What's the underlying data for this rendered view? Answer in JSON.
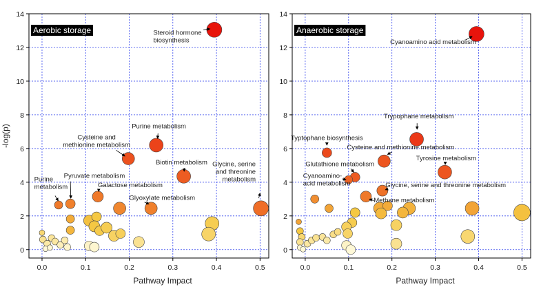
{
  "colors": {
    "grid": "#3344ee",
    "frame": "#000000",
    "bubble_stroke": "#444444",
    "title_bg": "#000000",
    "title_fg": "#ffffff",
    "scale_low": "#fffbe0",
    "scale_mid": "#f5c842",
    "scale_high": "#e8140c"
  },
  "chart_data": [
    {
      "type": "scatter",
      "title": "Aerobic storage",
      "xlabel": "Pathway Impact",
      "ylabel": "-log(p)",
      "xlim": [
        -0.03,
        0.52
      ],
      "ylim": [
        -0.5,
        14
      ],
      "xticks": [
        "0.0",
        "0.1",
        "0.2",
        "0.3",
        "0.4",
        "0.5"
      ],
      "xtick_values": [
        0,
        0.1,
        0.2,
        0.3,
        0.4,
        0.5
      ],
      "yticks": [
        "0",
        "2",
        "4",
        "6",
        "8",
        "10",
        "12",
        "14"
      ],
      "ytick_values": [
        0,
        2,
        4,
        6,
        8,
        10,
        12,
        14
      ],
      "grid": true,
      "points": [
        {
          "x": 0.395,
          "y": 13.05,
          "r": 11,
          "v": 1.0
        },
        {
          "x": 0.262,
          "y": 6.2,
          "r": 10,
          "v": 0.87
        },
        {
          "x": 0.198,
          "y": 5.4,
          "r": 9,
          "v": 0.83
        },
        {
          "x": 0.325,
          "y": 4.35,
          "r": 10,
          "v": 0.8
        },
        {
          "x": 0.502,
          "y": 2.45,
          "r": 11,
          "v": 0.75
        },
        {
          "x": 0.128,
          "y": 3.15,
          "r": 8,
          "v": 0.72
        },
        {
          "x": 0.25,
          "y": 2.45,
          "r": 9,
          "v": 0.7
        },
        {
          "x": 0.178,
          "y": 2.45,
          "r": 9,
          "v": 0.68
        },
        {
          "x": 0.065,
          "y": 2.72,
          "r": 7,
          "v": 0.7
        },
        {
          "x": 0.038,
          "y": 2.65,
          "r": 6,
          "v": 0.72
        },
        {
          "x": 0.065,
          "y": 1.82,
          "r": 6,
          "v": 0.58
        },
        {
          "x": 0.065,
          "y": 1.15,
          "r": 6,
          "v": 0.55
        },
        {
          "x": 0.108,
          "y": 1.72,
          "r": 8,
          "v": 0.52
        },
        {
          "x": 0.125,
          "y": 1.95,
          "r": 7,
          "v": 0.5
        },
        {
          "x": 0.12,
          "y": 1.38,
          "r": 8,
          "v": 0.5
        },
        {
          "x": 0.132,
          "y": 1.12,
          "r": 7,
          "v": 0.47
        },
        {
          "x": 0.148,
          "y": 1.3,
          "r": 8,
          "v": 0.45
        },
        {
          "x": 0.165,
          "y": 0.82,
          "r": 8,
          "v": 0.4
        },
        {
          "x": 0.18,
          "y": 0.95,
          "r": 7,
          "v": 0.42
        },
        {
          "x": 0.39,
          "y": 1.55,
          "r": 10,
          "v": 0.45
        },
        {
          "x": 0.382,
          "y": 0.92,
          "r": 10,
          "v": 0.38
        },
        {
          "x": 0.222,
          "y": 0.45,
          "r": 8,
          "v": 0.25
        },
        {
          "x": 0.0,
          "y": 1.0,
          "r": 4,
          "v": 0.35
        },
        {
          "x": 0.002,
          "y": 0.6,
          "r": 5,
          "v": 0.25
        },
        {
          "x": 0.012,
          "y": 0.35,
          "r": 5,
          "v": 0.18
        },
        {
          "x": 0.022,
          "y": 0.68,
          "r": 5,
          "v": 0.22
        },
        {
          "x": 0.03,
          "y": 0.48,
          "r": 5,
          "v": 0.2
        },
        {
          "x": 0.042,
          "y": 0.28,
          "r": 5,
          "v": 0.12
        },
        {
          "x": 0.052,
          "y": 0.55,
          "r": 5,
          "v": 0.16
        },
        {
          "x": 0.058,
          "y": 0.15,
          "r": 5,
          "v": 0.06
        },
        {
          "x": 0.008,
          "y": 0.05,
          "r": 4,
          "v": 0.03
        },
        {
          "x": 0.018,
          "y": 0.12,
          "r": 4,
          "v": 0.04
        },
        {
          "x": 0.108,
          "y": 0.22,
          "r": 7,
          "v": 0.08
        },
        {
          "x": 0.12,
          "y": 0.15,
          "r": 7,
          "v": 0.05
        }
      ],
      "annotations": [
        {
          "lines": [
            "Steroid hormone",
            "biosynthesis"
          ],
          "tx": 0.255,
          "ty": 12.75,
          "anchor": "start",
          "ax1": 0.37,
          "ay1": 13.05,
          "ax2": 0.385,
          "ay2": 13.1
        },
        {
          "lines": [
            "Purine metabolism"
          ],
          "tx": 0.268,
          "ty": 7.2,
          "anchor": "middle",
          "ax1": 0.266,
          "ay1": 6.9,
          "ax2": 0.265,
          "ay2": 6.6
        },
        {
          "lines": [
            "Cysteine and",
            "methionine metabolism"
          ],
          "tx": 0.125,
          "ty": 6.55,
          "anchor": "middle",
          "ax1": 0.17,
          "ay1": 5.9,
          "ax2": 0.19,
          "ay2": 5.55
        },
        {
          "lines": [
            "Biotin metabolism"
          ],
          "tx": 0.32,
          "ty": 5.05,
          "anchor": "middle",
          "ax1": 0.326,
          "ay1": 4.85,
          "ax2": 0.326,
          "ay2": 4.65
        },
        {
          "lines": [
            "Glycine, serine",
            "and threonine",
            "metabolism"
          ],
          "tx": 0.49,
          "ty": 4.95,
          "anchor": "end",
          "ax1": 0.497,
          "ay1": 3.05,
          "ax2": 0.5,
          "ay2": 3.35
        },
        {
          "lines": [
            "Pyruvate metabolism"
          ],
          "tx": 0.05,
          "ty": 4.25,
          "anchor": "start",
          "ax1": 0.065,
          "ay1": 4.05,
          "ax2": 0.066,
          "ay2": 3.05
        },
        {
          "lines": [
            "Purine",
            "metabolism"
          ],
          "tx": -0.018,
          "ty": 4.05,
          "anchor": "start",
          "ax1": 0.03,
          "ay1": 3.2,
          "ax2": 0.037,
          "ay2": 2.9
        },
        {
          "lines": [
            "Galactose metabolism"
          ],
          "tx": 0.128,
          "ty": 3.7,
          "anchor": "start",
          "ax1": 0.13,
          "ay1": 3.6,
          "ax2": 0.13,
          "ay2": 3.45
        },
        {
          "lines": [
            "Glyoxylate metabolism"
          ],
          "tx": 0.2,
          "ty": 2.95,
          "anchor": "start",
          "ax1": 0.235,
          "ay1": 2.82,
          "ax2": 0.245,
          "ay2": 2.7
        }
      ]
    },
    {
      "type": "scatter",
      "title": "Anaerobic storage",
      "xlabel": "Pathway Impact",
      "ylabel": "",
      "xlim": [
        -0.03,
        0.52
      ],
      "ylim": [
        -0.5,
        14
      ],
      "xticks": [
        "0.0",
        "0.1",
        "0.2",
        "0.3",
        "0.4",
        "0.5"
      ],
      "xtick_values": [
        0,
        0.1,
        0.2,
        0.3,
        0.4,
        0.5
      ],
      "yticks": [
        "0",
        "2",
        "4",
        "6",
        "8",
        "10",
        "12",
        "14"
      ],
      "ytick_values": [
        0,
        2,
        4,
        6,
        8,
        10,
        12,
        14
      ],
      "grid": true,
      "points": [
        {
          "x": 0.395,
          "y": 12.8,
          "r": 11,
          "v": 1.0
        },
        {
          "x": 0.257,
          "y": 6.55,
          "r": 10,
          "v": 0.9
        },
        {
          "x": 0.05,
          "y": 5.75,
          "r": 7,
          "v": 0.85
        },
        {
          "x": 0.182,
          "y": 5.25,
          "r": 9,
          "v": 0.82
        },
        {
          "x": 0.322,
          "y": 4.6,
          "r": 10,
          "v": 0.82
        },
        {
          "x": 0.115,
          "y": 4.3,
          "r": 7,
          "v": 0.8
        },
        {
          "x": 0.1,
          "y": 4.15,
          "r": 6,
          "v": 0.78
        },
        {
          "x": 0.178,
          "y": 3.5,
          "r": 8,
          "v": 0.74
        },
        {
          "x": 0.14,
          "y": 3.15,
          "r": 8,
          "v": 0.72
        },
        {
          "x": 0.022,
          "y": 3.0,
          "r": 6,
          "v": 0.66
        },
        {
          "x": 0.055,
          "y": 2.45,
          "r": 6,
          "v": 0.6
        },
        {
          "x": 0.172,
          "y": 2.45,
          "r": 9,
          "v": 0.58
        },
        {
          "x": 0.19,
          "y": 2.6,
          "r": 7,
          "v": 0.58
        },
        {
          "x": 0.24,
          "y": 2.45,
          "r": 9,
          "v": 0.56
        },
        {
          "x": 0.225,
          "y": 2.2,
          "r": 8,
          "v": 0.55
        },
        {
          "x": 0.385,
          "y": 2.45,
          "r": 10,
          "v": 0.6
        },
        {
          "x": 0.5,
          "y": 2.2,
          "r": 12,
          "v": 0.52
        },
        {
          "x": 0.175,
          "y": 2.15,
          "r": 8,
          "v": 0.54
        },
        {
          "x": 0.115,
          "y": 2.2,
          "r": 7,
          "v": 0.5
        },
        {
          "x": 0.108,
          "y": 1.6,
          "r": 7,
          "v": 0.46
        },
        {
          "x": 0.095,
          "y": 1.35,
          "r": 7,
          "v": 0.42
        },
        {
          "x": 0.098,
          "y": 0.95,
          "r": 7,
          "v": 0.38
        },
        {
          "x": 0.21,
          "y": 1.45,
          "r": 8,
          "v": 0.4
        },
        {
          "x": 0.375,
          "y": 0.78,
          "r": 10,
          "v": 0.35
        },
        {
          "x": 0.21,
          "y": 0.35,
          "r": 8,
          "v": 0.25
        },
        {
          "x": -0.015,
          "y": 1.65,
          "r": 4,
          "v": 0.6
        },
        {
          "x": -0.012,
          "y": 1.1,
          "r": 5,
          "v": 0.5
        },
        {
          "x": -0.008,
          "y": 0.75,
          "r": 5,
          "v": 0.35
        },
        {
          "x": -0.012,
          "y": 0.45,
          "r": 5,
          "v": 0.25
        },
        {
          "x": 0.005,
          "y": 0.35,
          "r": 5,
          "v": 0.2
        },
        {
          "x": 0.015,
          "y": 0.55,
          "r": 5,
          "v": 0.22
        },
        {
          "x": 0.025,
          "y": 0.7,
          "r": 5,
          "v": 0.25
        },
        {
          "x": 0.04,
          "y": 0.75,
          "r": 5,
          "v": 0.22
        },
        {
          "x": 0.05,
          "y": 0.55,
          "r": 5,
          "v": 0.18
        },
        {
          "x": 0.065,
          "y": 0.9,
          "r": 5,
          "v": 0.28
        },
        {
          "x": 0.075,
          "y": 1.05,
          "r": 5,
          "v": 0.3
        },
        {
          "x": -0.012,
          "y": 0.12,
          "r": 4,
          "v": 0.04
        },
        {
          "x": -0.005,
          "y": 0.02,
          "r": 4,
          "v": 0.03
        },
        {
          "x": 0.095,
          "y": 0.25,
          "r": 7,
          "v": 0.08
        },
        {
          "x": 0.105,
          "y": 0.0,
          "r": 7,
          "v": 0.03
        }
      ],
      "annotations": [
        {
          "lines": [
            "Cyanoamino acid metabolism"
          ],
          "tx": 0.295,
          "ty": 12.2,
          "anchor": "middle",
          "ax1": 0.37,
          "ay1": 12.45,
          "ax2": 0.385,
          "ay2": 12.65
        },
        {
          "lines": [
            "Trypophane metabolism"
          ],
          "tx": 0.262,
          "ty": 7.8,
          "anchor": "middle",
          "ax1": 0.258,
          "ay1": 7.5,
          "ax2": 0.258,
          "ay2": 7.15
        },
        {
          "lines": [
            "Typtophane biosynthesis"
          ],
          "tx": 0.05,
          "ty": 6.5,
          "anchor": "middle",
          "ax1": 0.05,
          "ay1": 6.3,
          "ax2": 0.05,
          "ay2": 6.2
        },
        {
          "lines": [
            "Cysteine and methionine metabolism"
          ],
          "tx": 0.22,
          "ty": 5.95,
          "anchor": "middle",
          "ax1": 0.2,
          "ay1": 5.8,
          "ax2": 0.19,
          "ay2": 5.65
        },
        {
          "lines": [
            "Tyrosine metabolism"
          ],
          "tx": 0.325,
          "ty": 5.3,
          "anchor": "middle",
          "ax1": 0.323,
          "ay1": 5.15,
          "ax2": 0.323,
          "ay2": 5.05
        },
        {
          "lines": [
            "Glutathione metabolism"
          ],
          "tx": 0.08,
          "ty": 4.95,
          "anchor": "middle",
          "ax1": 0.105,
          "ay1": 4.8,
          "ax2": 0.112,
          "ay2": 4.6
        },
        {
          "lines": [
            "Cyanoamino-",
            "acid metabolism"
          ],
          "tx": -0.005,
          "ty": 4.25,
          "anchor": "start",
          "ax1": 0.085,
          "ay1": 4.2,
          "ax2": 0.094,
          "ay2": 4.15
        },
        {
          "lines": [
            "Glycine, serine and threonine metabolism"
          ],
          "tx": 0.185,
          "ty": 3.7,
          "anchor": "start",
          "ax1": 0.19,
          "ay1": 3.6,
          "ax2": 0.185,
          "ay2": 3.55
        },
        {
          "lines": [
            "Methane metabolism"
          ],
          "tx": 0.158,
          "ty": 2.8,
          "anchor": "start",
          "ax1": 0.158,
          "ay1": 2.9,
          "ax2": 0.148,
          "ay2": 3.0
        }
      ]
    }
  ]
}
